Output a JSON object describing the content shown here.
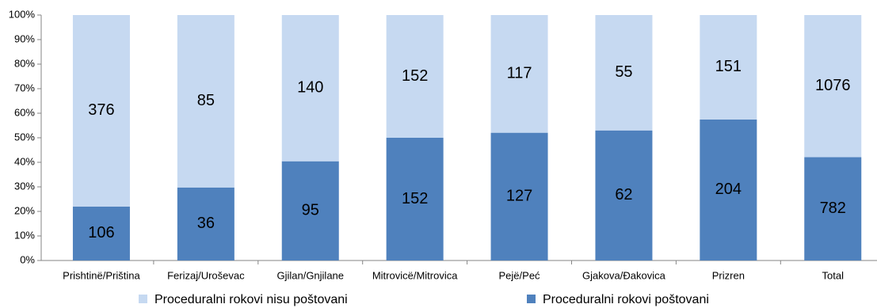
{
  "chart_data": {
    "type": "bar",
    "stacking": "percent",
    "categories": [
      "Prishtinë/Priština",
      "Ferizaj/Uroševac",
      "Gjilan/Gnjilane",
      "Mitrovicë/Mitrovica",
      "Pejë/Peć",
      "Gjakova/Đakovica",
      "Prizren",
      "Total"
    ],
    "series": [
      {
        "name": "Proceduralni rokovi poštovani",
        "color": "#4f81bd",
        "values": [
          106,
          36,
          95,
          152,
          127,
          62,
          204,
          782
        ]
      },
      {
        "name": "Proceduralni rokovi nisu poštovani",
        "color": "#c6d9f1",
        "values": [
          376,
          85,
          140,
          152,
          117,
          55,
          151,
          1076
        ]
      }
    ],
    "ylim": [
      0,
      100
    ],
    "yticks": [
      {
        "value": 0,
        "label": "0%"
      },
      {
        "value": 10,
        "label": "10%"
      },
      {
        "value": 20,
        "label": "20%"
      },
      {
        "value": 30,
        "label": "30%"
      },
      {
        "value": 40,
        "label": "40%"
      },
      {
        "value": 50,
        "label": "50%"
      },
      {
        "value": 60,
        "label": "60%"
      },
      {
        "value": 70,
        "label": "70%"
      },
      {
        "value": 80,
        "label": "80%"
      },
      {
        "value": 90,
        "label": "90%"
      },
      {
        "value": 100,
        "label": "100%"
      }
    ],
    "grid": false,
    "legend": "bottom"
  }
}
